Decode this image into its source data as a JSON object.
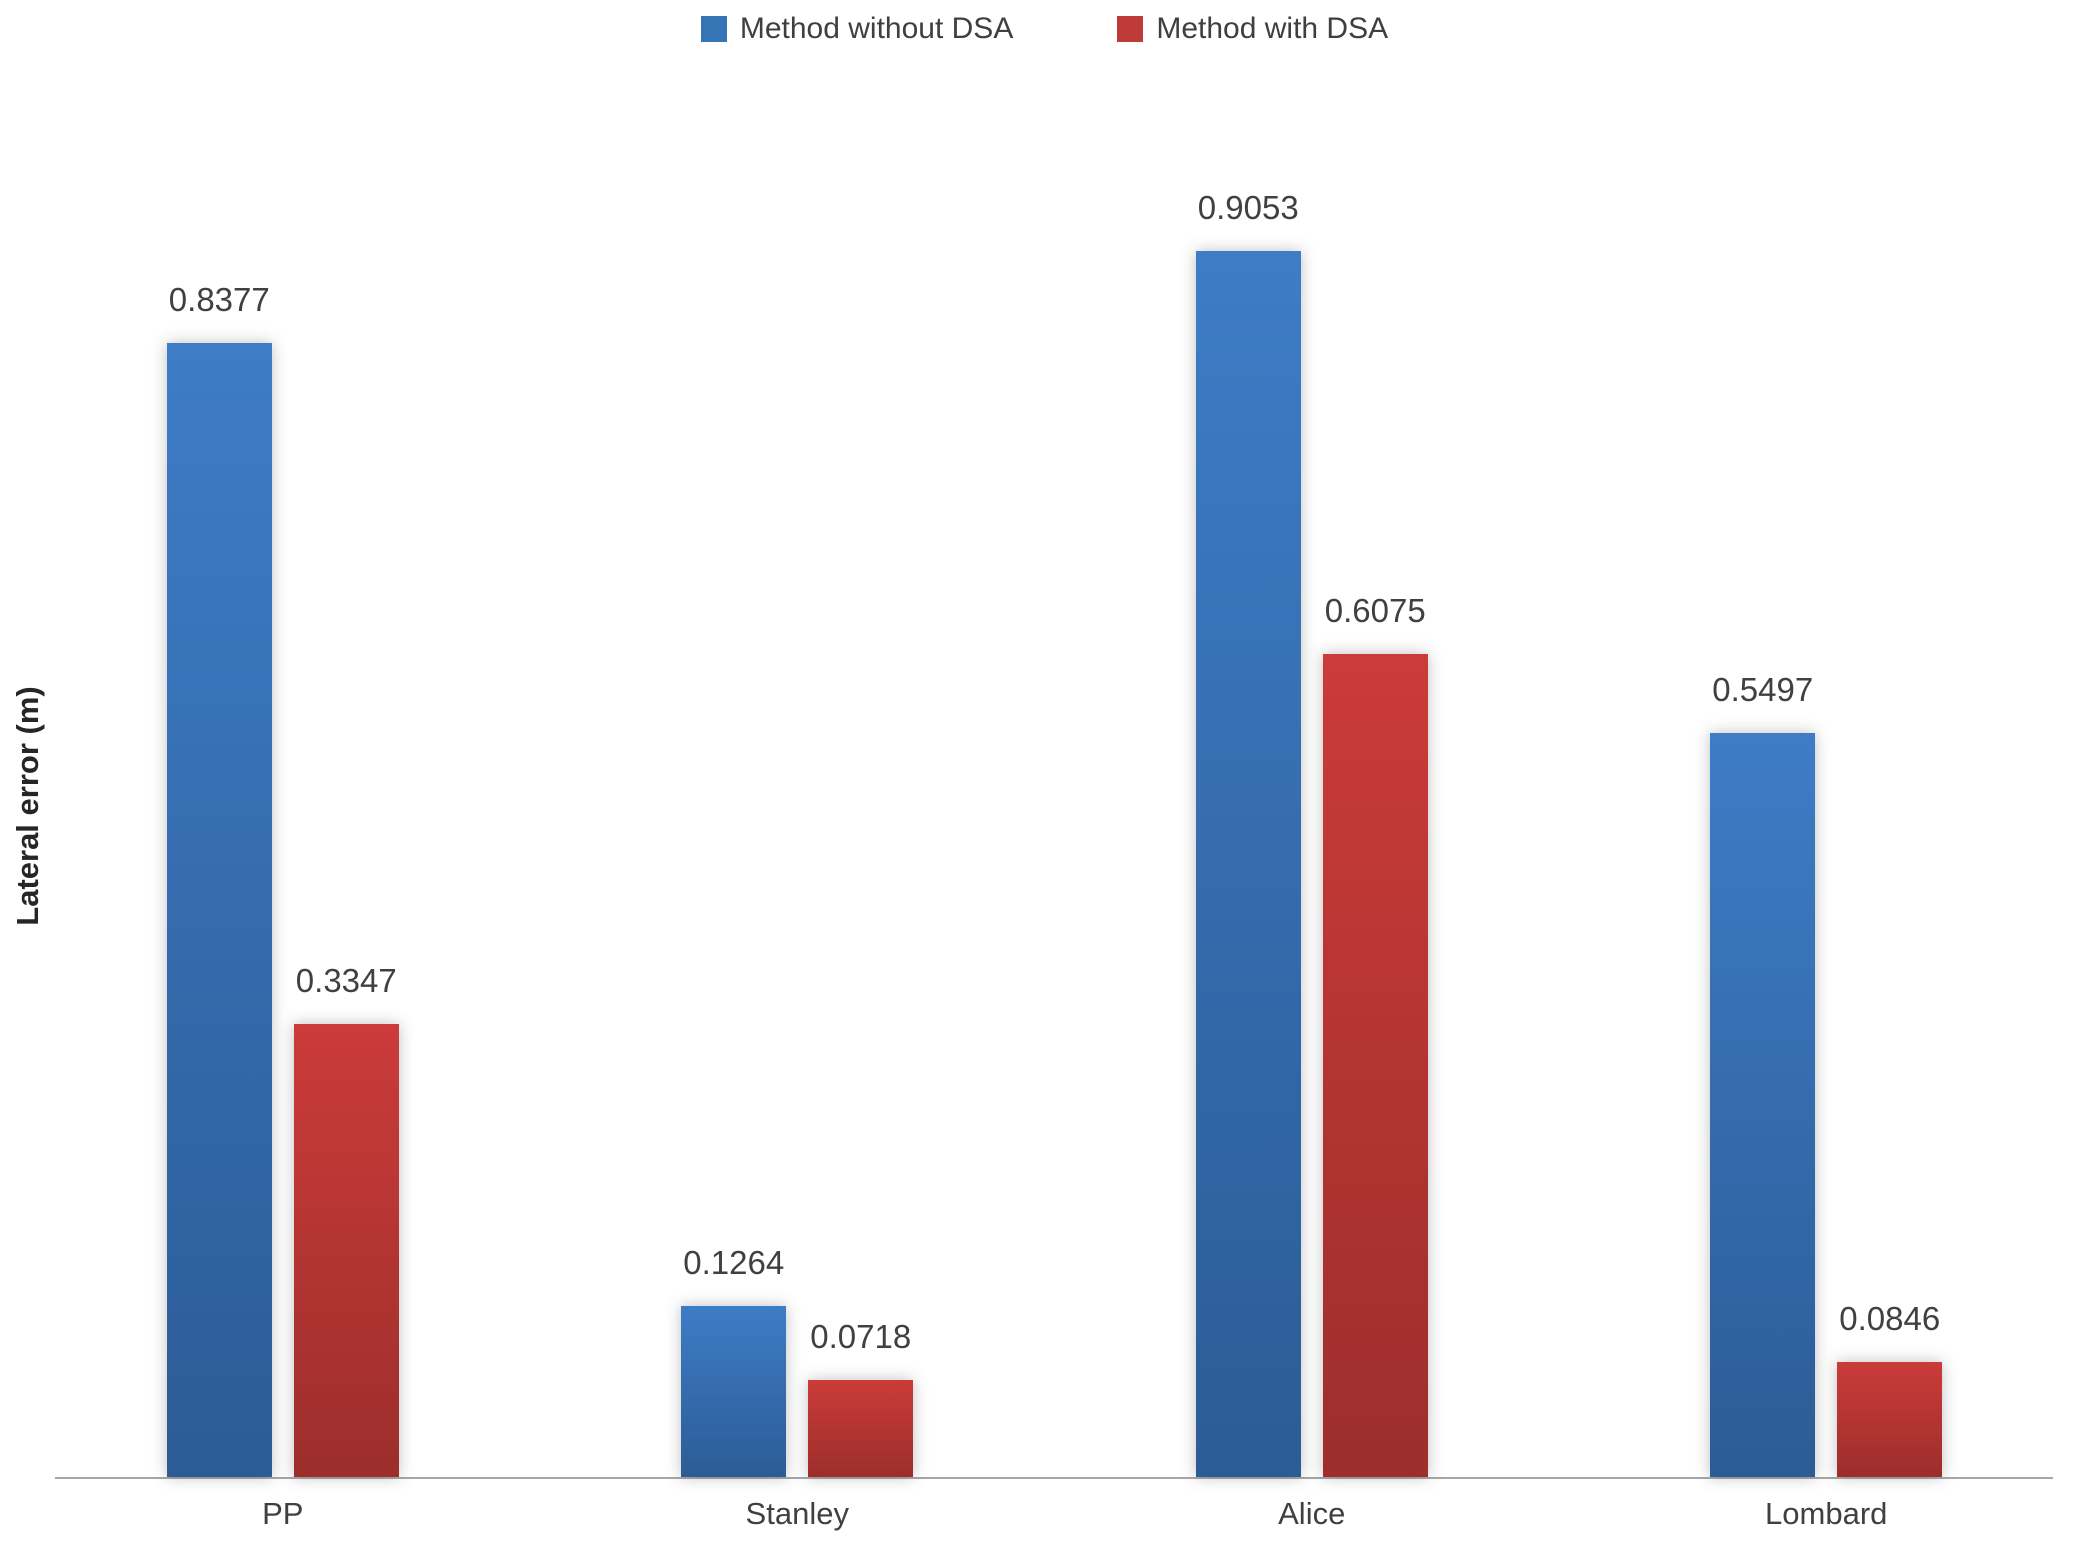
{
  "chart_data": {
    "type": "bar",
    "title": "",
    "categories": [
      "PP",
      "Stanley",
      "Alice",
      "Lombard"
    ],
    "series": [
      {
        "name": "Method without DSA",
        "values": [
          0.8377,
          0.1264,
          0.9053,
          0.5497
        ],
        "color_top": "#3E7CC6",
        "color_bottom": "#2B5C96",
        "legend_color": "#3575B5"
      },
      {
        "name": "Method with DSA",
        "values": [
          0.3347,
          0.0718,
          0.6075,
          0.0846
        ],
        "color_top": "#CB3B39",
        "color_bottom": "#9C2E2C",
        "legend_color": "#BE3B39"
      }
    ],
    "xlabel": "",
    "ylabel": "Lateral error (m)",
    "ylim": [
      0,
      1.0
    ],
    "grid": false,
    "legend_position": "top-center",
    "value_label_decimals": 4,
    "axis_line_color": "#A6A6A6",
    "text_color": "#404040"
  }
}
